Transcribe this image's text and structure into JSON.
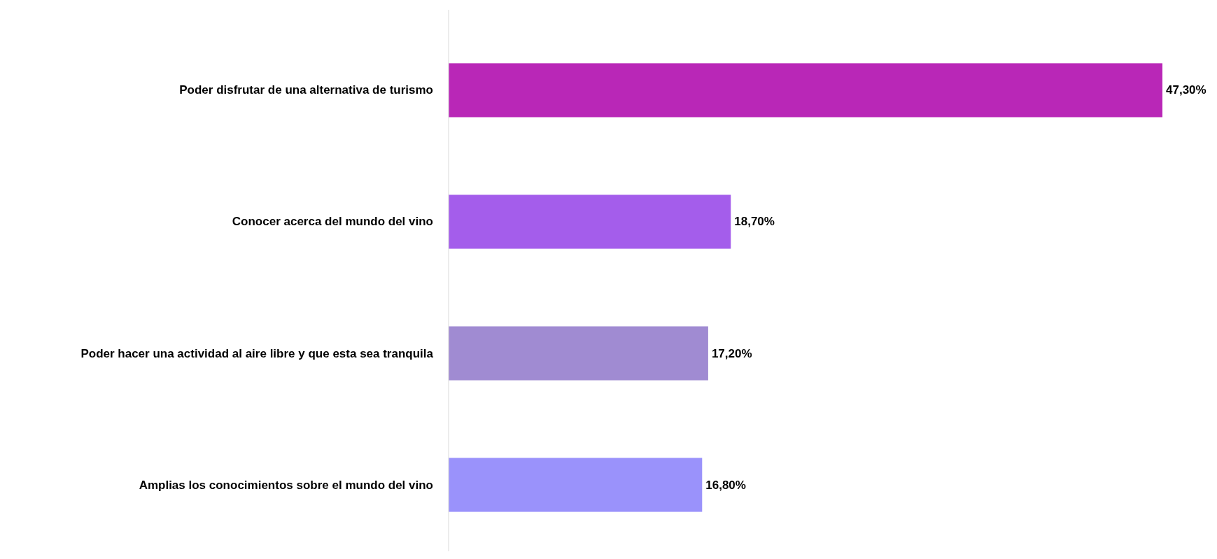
{
  "chart_data": {
    "type": "bar",
    "orientation": "horizontal",
    "categories": [
      "Poder disfrutar de una alternativa de turismo",
      "Conocer acerca del mundo del vino",
      "Poder hacer una actividad al aire libre y que esta sea tranquila",
      "Amplias los conocimientos sobre el mundo del vino"
    ],
    "values": [
      47.3,
      18.7,
      17.2,
      16.8
    ],
    "colors": [
      "#b927b7",
      "#a45deb",
      "#a08bd2",
      "#9a92fb"
    ],
    "value_labels": [
      "47,30%",
      "18,70%",
      "17,20%",
      "16,80%"
    ]
  }
}
